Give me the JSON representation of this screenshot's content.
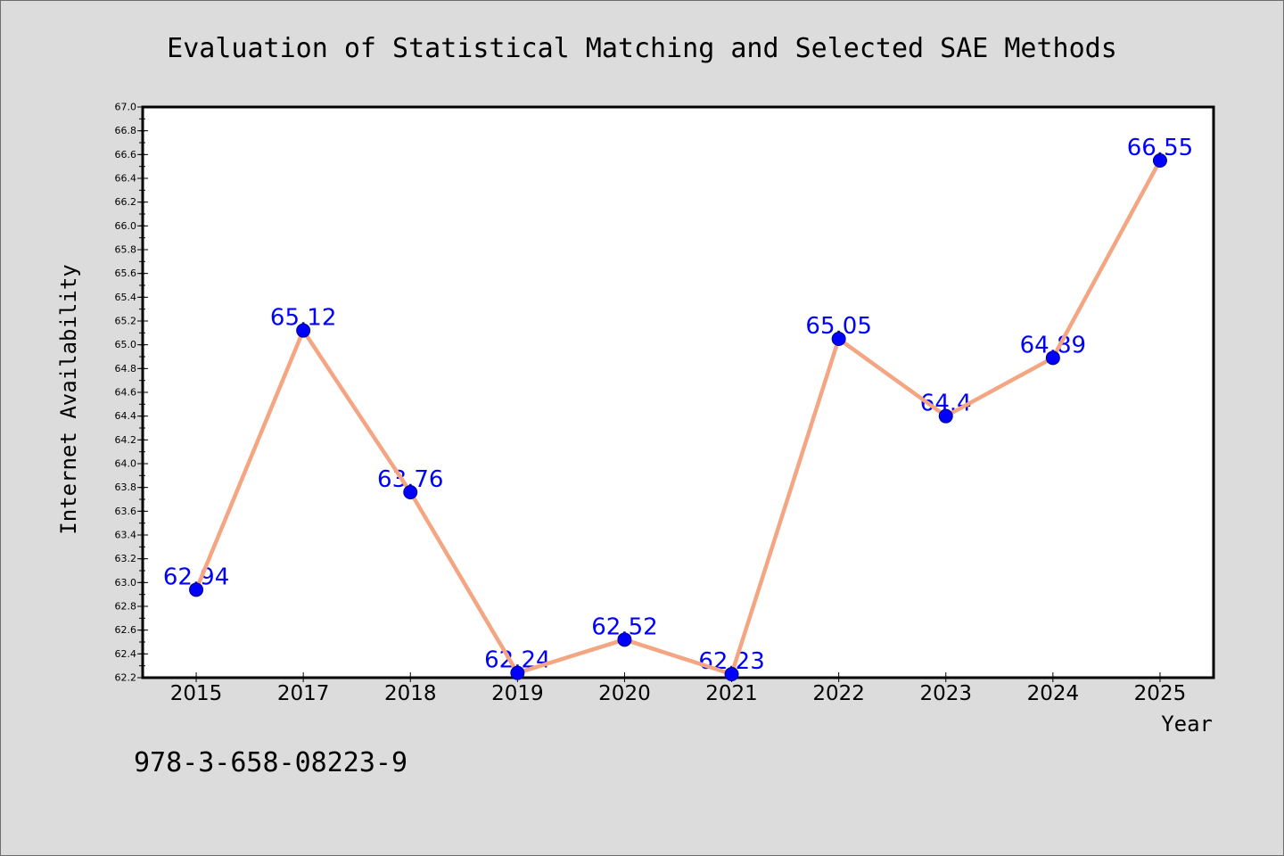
{
  "chart_data": {
    "type": "line",
    "title": "Evaluation of Statistical Matching and Selected SAE Methods",
    "xlabel": "Year",
    "ylabel": "Internet Availability",
    "categories": [
      "2015",
      "2017",
      "2018",
      "2019",
      "2020",
      "2021",
      "2022",
      "2023",
      "2024",
      "2025"
    ],
    "values": [
      62.94,
      65.12,
      63.76,
      62.24,
      62.52,
      62.23,
      65.05,
      64.4,
      64.89,
      66.55
    ],
    "data_labels": [
      "62.94",
      "65.12",
      "63.76",
      "62.24",
      "62.52",
      "62.23",
      "65.05",
      "64.4",
      "64.89",
      "66.55"
    ],
    "ylim": [
      62.2,
      67.0
    ],
    "ytick_labels": [
      "62.2",
      "62.4",
      "62.6",
      "62.8",
      "63.0",
      "63.2",
      "63.4",
      "63.6",
      "63.8",
      "64.0",
      "64.2",
      "64.4",
      "64.6",
      "64.8",
      "65.0",
      "65.2",
      "65.4",
      "65.6",
      "65.8",
      "66.0",
      "66.2",
      "66.4",
      "66.6",
      "66.8",
      "67.0"
    ],
    "grid": false,
    "colors": {
      "line": "#f4a582",
      "marker": "#0000ff",
      "marker_edge": "#00008b",
      "data_label": "#0000ff"
    }
  },
  "footer": {
    "text": "978-3-658-08223-9"
  },
  "colors": {
    "figure_background": "#dcdcdc",
    "plot_background": "#ffffff",
    "frame": "#000000",
    "text": "#000000"
  }
}
